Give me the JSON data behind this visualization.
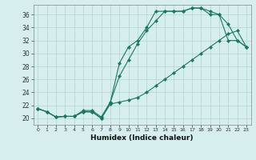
{
  "title": "",
  "xlabel": "Humidex (Indice chaleur)",
  "background_color": "#d6eeee",
  "grid_color": "#b8d8d8",
  "line_color": "#1a7a5e",
  "xlim": [
    -0.5,
    23.5
  ],
  "ylim": [
    19.0,
    37.5
  ],
  "yticks": [
    20,
    22,
    24,
    26,
    28,
    30,
    32,
    34,
    36
  ],
  "xticks": [
    0,
    1,
    2,
    3,
    4,
    5,
    6,
    7,
    8,
    9,
    10,
    11,
    12,
    13,
    14,
    15,
    16,
    17,
    18,
    19,
    20,
    21,
    22,
    23
  ],
  "line1_x": [
    0,
    1,
    2,
    3,
    4,
    5,
    6,
    7,
    8,
    9,
    10,
    11,
    12,
    13,
    14,
    15,
    16,
    17,
    18,
    19,
    20,
    21,
    22,
    23
  ],
  "line1_y": [
    21.5,
    21.0,
    20.2,
    20.3,
    20.3,
    21.0,
    21.0,
    20.0,
    22.2,
    22.5,
    22.8,
    23.2,
    24.0,
    25.0,
    26.0,
    27.0,
    28.0,
    29.0,
    30.0,
    31.0,
    32.0,
    33.0,
    33.5,
    31.0
  ],
  "line2_x": [
    0,
    1,
    2,
    3,
    4,
    5,
    6,
    7,
    8,
    9,
    10,
    11,
    12,
    13,
    14,
    15,
    16,
    17,
    18,
    19,
    20,
    21,
    22,
    23
  ],
  "line2_y": [
    21.5,
    21.0,
    20.2,
    20.3,
    20.3,
    21.0,
    21.0,
    20.0,
    22.5,
    26.5,
    29.0,
    31.5,
    33.5,
    35.0,
    36.5,
    36.5,
    36.5,
    37.0,
    37.0,
    36.5,
    36.0,
    32.0,
    32.0,
    31.0
  ],
  "line3_x": [
    0,
    1,
    2,
    3,
    4,
    5,
    6,
    7,
    8,
    9,
    10,
    11,
    12,
    13,
    14,
    15,
    16,
    17,
    18,
    19,
    20,
    21,
    22,
    23
  ],
  "line3_y": [
    21.5,
    21.0,
    20.2,
    20.3,
    20.3,
    21.2,
    21.2,
    20.2,
    22.5,
    28.5,
    31.0,
    32.0,
    34.0,
    36.5,
    36.5,
    36.5,
    36.5,
    37.0,
    37.0,
    36.0,
    36.0,
    34.5,
    32.0,
    31.0
  ]
}
